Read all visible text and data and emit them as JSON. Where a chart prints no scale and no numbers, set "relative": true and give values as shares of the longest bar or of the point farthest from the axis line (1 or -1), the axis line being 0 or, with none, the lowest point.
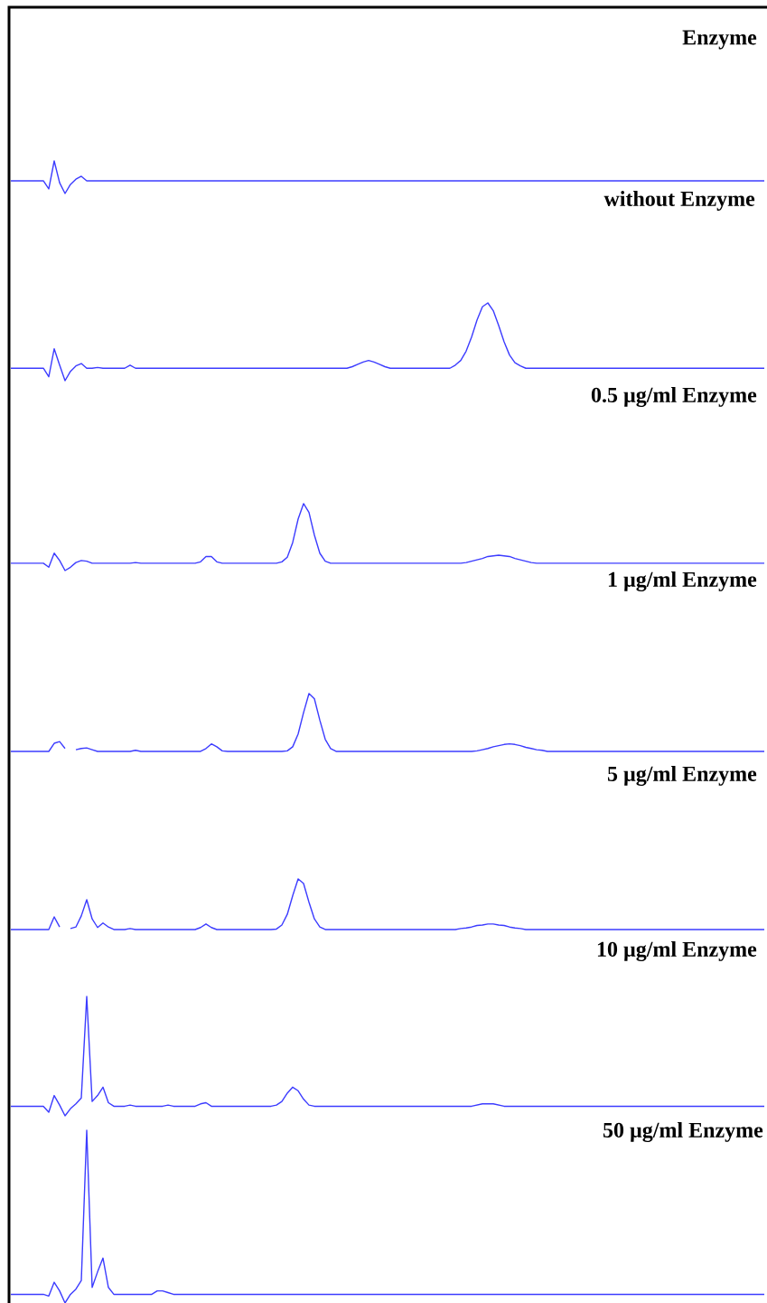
{
  "chart_data": [
    {
      "type": "line",
      "relative": true,
      "title": "Enzyme",
      "color": "#3c3cff",
      "categories": [
        null,
        null,
        null,
        null,
        null,
        null,
        null,
        null,
        null,
        null,
        null,
        null,
        null,
        null,
        null,
        null,
        null,
        null,
        null,
        null,
        null,
        null,
        null,
        null,
        null,
        null,
        null,
        null,
        null,
        null,
        null,
        null,
        null,
        null,
        null,
        null,
        null,
        null,
        null,
        null,
        null,
        null,
        null,
        null,
        null,
        null,
        null,
        null,
        null,
        null,
        null,
        null,
        null,
        null,
        null,
        null,
        null,
        null,
        null,
        null,
        null,
        null,
        null,
        null,
        null,
        null,
        null,
        null,
        null,
        null,
        null,
        null,
        null,
        null,
        null,
        null,
        null,
        null,
        null,
        null,
        null,
        null,
        null,
        null,
        null,
        null,
        null,
        null,
        null,
        null,
        null,
        null,
        null,
        null,
        null,
        null,
        null,
        null,
        null,
        null,
        null,
        null,
        null,
        null,
        null,
        null,
        null,
        null,
        null,
        null,
        null,
        null,
        null,
        null,
        null,
        null,
        null,
        null,
        null,
        null,
        null,
        null,
        null,
        null,
        null,
        null,
        null,
        null,
        null,
        null,
        null,
        null,
        null,
        null,
        null,
        null,
        null,
        null,
        null,
        null
      ],
      "values": [
        0.39,
        0.39,
        0.39,
        0.39,
        0.39,
        0.39,
        0.39,
        0.14,
        1,
        0.33,
        0,
        0.28,
        0.44,
        0.53,
        0.39,
        0.39,
        0.39,
        0.39,
        0.39,
        0.39,
        0.39,
        0.39,
        0.39,
        0.39,
        0.39,
        0.39,
        0.39,
        0.39,
        0.39,
        0.39,
        0.39,
        0.39,
        0.39,
        0.39,
        0.39,
        0.39,
        0.39,
        0.39,
        0.39,
        0.39,
        0.39,
        0.39,
        0.39,
        0.39,
        0.39,
        0.39,
        0.39,
        0.39,
        0.39,
        0.39,
        0.39,
        0.39,
        0.39,
        0.39,
        0.39,
        0.39,
        0.39,
        0.39,
        0.39,
        0.39,
        0.39,
        0.39,
        0.39,
        0.39,
        0.39,
        0.39,
        0.39,
        0.39,
        0.39,
        0.39,
        0.39,
        0.39,
        0.39,
        0.39,
        0.39,
        0.39,
        0.39,
        0.39,
        0.39,
        0.39,
        0.39,
        0.39,
        0.39,
        0.39,
        0.39,
        0.39,
        0.39,
        0.39,
        0.39,
        0.39,
        0.39,
        0.39,
        0.39,
        0.39,
        0.39,
        0.39,
        0.39,
        0.39,
        0.39,
        0.39,
        0.39,
        0.39,
        0.39,
        0.39,
        0.39,
        0.39,
        0.39,
        0.39,
        0.39,
        0.39,
        0.39,
        0.39,
        0.39,
        0.39,
        0.39,
        0.39,
        0.39,
        0.39,
        0.39,
        0.39,
        0.39,
        0.39,
        0.39,
        0.39,
        0.39,
        0.39,
        0.39,
        0.39,
        0.39,
        0.39,
        0.39,
        0.39,
        0.39,
        0.39,
        0.39,
        0.39,
        0.39,
        0.39,
        0.39,
        0.39
      ]
    },
    {
      "type": "line",
      "relative": true,
      "title": "without Enzyme",
      "color": "#3c3cff",
      "categories": [
        null,
        null,
        null,
        null,
        null,
        null,
        null,
        null,
        null,
        null,
        null,
        null,
        null,
        null,
        null,
        null,
        null,
        null,
        null,
        null,
        null,
        null,
        null,
        null,
        null,
        null,
        null,
        null,
        null,
        null,
        null,
        null,
        null,
        null,
        null,
        null,
        null,
        null,
        null,
        null,
        null,
        null,
        null,
        null,
        null,
        null,
        null,
        null,
        null,
        null,
        null,
        null,
        null,
        null,
        null,
        null,
        null,
        null,
        null,
        null,
        null,
        null,
        null,
        null,
        null,
        null,
        null,
        null,
        null,
        null,
        null,
        null,
        null,
        null,
        null,
        null,
        null,
        null,
        null,
        null,
        null,
        null,
        null,
        null,
        null,
        null,
        null,
        null,
        null,
        null,
        null,
        null,
        null,
        null,
        null,
        null,
        null,
        null,
        null,
        null,
        null,
        null,
        null,
        null,
        null,
        null,
        null,
        null,
        null,
        null,
        null,
        null,
        null,
        null,
        null,
        null,
        null,
        null,
        null,
        null,
        null,
        null,
        null,
        null,
        null,
        null,
        null,
        null,
        null,
        null,
        null,
        null,
        null,
        null,
        null,
        null,
        null,
        null,
        null,
        null
      ],
      "values": [
        0.16,
        0.16,
        0.16,
        0.16,
        0.16,
        0.16,
        0.16,
        0.05,
        0.41,
        0.2,
        0,
        0.12,
        0.19,
        0.22,
        0.16,
        0.16,
        0.17,
        0.16,
        0.16,
        0.16,
        0.16,
        0.16,
        0.2,
        0.16,
        0.16,
        0.16,
        0.16,
        0.16,
        0.16,
        0.16,
        0.16,
        0.16,
        0.16,
        0.16,
        0.16,
        0.16,
        0.16,
        0.16,
        0.16,
        0.16,
        0.16,
        0.16,
        0.16,
        0.16,
        0.16,
        0.16,
        0.16,
        0.16,
        0.16,
        0.16,
        0.16,
        0.16,
        0.16,
        0.16,
        0.16,
        0.16,
        0.16,
        0.16,
        0.16,
        0.16,
        0.16,
        0.16,
        0.16,
        0.18,
        0.21,
        0.24,
        0.26,
        0.24,
        0.21,
        0.18,
        0.16,
        0.16,
        0.16,
        0.16,
        0.16,
        0.16,
        0.16,
        0.16,
        0.16,
        0.16,
        0.16,
        0.16,
        0.2,
        0.26,
        0.38,
        0.56,
        0.78,
        0.95,
        1,
        0.9,
        0.71,
        0.5,
        0.33,
        0.23,
        0.19,
        0.16,
        0.16,
        0.16,
        0.16,
        0.16,
        0.16,
        0.16,
        0.16,
        0.16,
        0.16,
        0.16,
        0.16,
        0.16,
        0.16,
        0.16,
        0.16,
        0.16,
        0.16,
        0.16,
        0.16,
        0.16,
        0.16,
        0.16,
        0.16,
        0.16,
        0.16,
        0.16,
        0.16,
        0.16,
        0.16,
        0.16,
        0.16,
        0.16,
        0.16,
        0.16,
        0.16,
        0.16,
        0.16,
        0.16,
        0.16,
        0.16,
        0.16,
        0.16,
        0.16,
        0.16
      ]
    },
    {
      "type": "line",
      "relative": true,
      "title": "0.5 µg/ml Enzyme",
      "color": "#3c3cff",
      "categories": [
        null,
        null,
        null,
        null,
        null,
        null,
        null,
        null,
        null,
        null,
        null,
        null,
        null,
        null,
        null,
        null,
        null,
        null,
        null,
        null,
        null,
        null,
        null,
        null,
        null,
        null,
        null,
        null,
        null,
        null,
        null,
        null,
        null,
        null,
        null,
        null,
        null,
        null,
        null,
        null,
        null,
        null,
        null,
        null,
        null,
        null,
        null,
        null,
        null,
        null,
        null,
        null,
        null,
        null,
        null,
        null,
        null,
        null,
        null,
        null,
        null,
        null,
        null,
        null,
        null,
        null,
        null,
        null,
        null,
        null,
        null,
        null,
        null,
        null,
        null,
        null,
        null,
        null,
        null,
        null,
        null,
        null,
        null,
        null,
        null,
        null,
        null,
        null,
        null,
        null,
        null,
        null,
        null,
        null,
        null,
        null,
        null,
        null,
        null,
        null,
        null,
        null,
        null,
        null,
        null,
        null,
        null,
        null,
        null,
        null,
        null,
        null,
        null,
        null,
        null,
        null,
        null,
        null,
        null,
        null,
        null,
        null,
        null,
        null,
        null,
        null,
        null,
        null,
        null,
        null,
        null,
        null,
        null,
        null,
        null,
        null,
        null,
        null,
        null,
        null
      ],
      "values": [
        0.11,
        0.11,
        0.11,
        0.11,
        0.11,
        0.11,
        0.11,
        0.05,
        0.26,
        0.15,
        0,
        0.05,
        0.12,
        0.15,
        0.14,
        0.11,
        0.11,
        0.11,
        0.11,
        0.11,
        0.11,
        0.11,
        0.11,
        0.12,
        0.11,
        0.11,
        0.11,
        0.11,
        0.11,
        0.11,
        0.11,
        0.11,
        0.11,
        0.11,
        0.11,
        0.13,
        0.21,
        0.21,
        0.13,
        0.11,
        0.11,
        0.11,
        0.11,
        0.11,
        0.11,
        0.11,
        0.11,
        0.11,
        0.11,
        0.11,
        0.13,
        0.2,
        0.42,
        0.77,
        1,
        0.87,
        0.53,
        0.26,
        0.14,
        0.11,
        0.11,
        0.11,
        0.11,
        0.11,
        0.11,
        0.11,
        0.11,
        0.11,
        0.11,
        0.11,
        0.11,
        0.11,
        0.11,
        0.11,
        0.11,
        0.11,
        0.11,
        0.11,
        0.11,
        0.11,
        0.11,
        0.11,
        0.11,
        0.11,
        0.12,
        0.14,
        0.16,
        0.18,
        0.21,
        0.22,
        0.23,
        0.22,
        0.21,
        0.18,
        0.16,
        0.14,
        0.12,
        0.11,
        0.11,
        0.11,
        0.11,
        0.11,
        0.11,
        0.11,
        0.11,
        0.11,
        0.11,
        0.11,
        0.11,
        0.11,
        0.11,
        0.11,
        0.11,
        0.11,
        0.11,
        0.11,
        0.11,
        0.11,
        0.11,
        0.11,
        0.11,
        0.11,
        0.11,
        0.11,
        0.11,
        0.11,
        0.11,
        0.11,
        0.11,
        0.11,
        0.11,
        0.11,
        0.11,
        0.11,
        0.11,
        0.11,
        0.11,
        0.11,
        0.11,
        0.11
      ]
    },
    {
      "type": "line",
      "relative": true,
      "title": "1 µg/ml Enzyme",
      "color": "#3c3cff",
      "categories": [
        null,
        null,
        null,
        null,
        null,
        null,
        null,
        null,
        null,
        null,
        null,
        null,
        null,
        null,
        null,
        null,
        null,
        null,
        null,
        null,
        null,
        null,
        null,
        null,
        null,
        null,
        null,
        null,
        null,
        null,
        null,
        null,
        null,
        null,
        null,
        null,
        null,
        null,
        null,
        null,
        null,
        null,
        null,
        null,
        null,
        null,
        null,
        null,
        null,
        null,
        null,
        null,
        null,
        null,
        null,
        null,
        null,
        null,
        null,
        null,
        null,
        null,
        null,
        null,
        null,
        null,
        null,
        null,
        null,
        null,
        null,
        null,
        null,
        null,
        null,
        null,
        null,
        null,
        null,
        null,
        null,
        null,
        null,
        null,
        null,
        null,
        null,
        null,
        null,
        null,
        null,
        null,
        null,
        null,
        null,
        null,
        null,
        null,
        null,
        null,
        null,
        null,
        null,
        null,
        null,
        null,
        null,
        null,
        null,
        null,
        null,
        null,
        null,
        null,
        null,
        null,
        null,
        null,
        null,
        null,
        null,
        null,
        null,
        null,
        null,
        null,
        null,
        null,
        null,
        null,
        null,
        null,
        null,
        null,
        null,
        null,
        null,
        null,
        null,
        null
      ],
      "values": [
        0,
        0,
        0,
        0,
        0,
        0,
        0,
        0,
        0.14,
        0.17,
        0.05,
        null,
        0.03,
        0.05,
        0.06,
        0.03,
        0,
        0,
        0,
        0,
        0,
        0,
        0,
        0.02,
        0,
        0,
        0,
        0,
        0,
        0,
        0,
        0,
        0,
        0,
        0,
        0,
        0.05,
        0.13,
        0.08,
        0.01,
        0,
        0,
        0,
        0,
        0,
        0,
        0,
        0,
        0,
        0,
        0,
        0.01,
        0.08,
        0.3,
        0.67,
        1,
        0.91,
        0.54,
        0.21,
        0.05,
        0,
        0,
        0,
        0,
        0,
        0,
        0,
        0,
        0,
        0,
        0,
        0,
        0,
        0,
        0,
        0,
        0,
        0,
        0,
        0,
        0,
        0,
        0,
        0,
        0,
        0,
        0.01,
        0.03,
        0.05,
        0.08,
        0.1,
        0.12,
        0.13,
        0.12,
        0.1,
        0.07,
        0.05,
        0.03,
        0.02,
        0,
        0,
        0,
        0,
        0,
        0,
        0,
        0,
        0,
        0,
        0,
        0,
        0,
        0,
        0,
        0,
        0,
        0,
        0,
        0,
        0,
        0,
        0,
        0,
        0,
        0,
        0,
        0,
        0,
        0,
        0,
        0,
        0,
        0,
        0,
        0,
        0,
        0,
        0,
        0,
        0
      ]
    },
    {
      "type": "line",
      "relative": true,
      "title": "5 µg/ml Enzyme",
      "color": "#3c3cff",
      "categories": [
        null,
        null,
        null,
        null,
        null,
        null,
        null,
        null,
        null,
        null,
        null,
        null,
        null,
        null,
        null,
        null,
        null,
        null,
        null,
        null,
        null,
        null,
        null,
        null,
        null,
        null,
        null,
        null,
        null,
        null,
        null,
        null,
        null,
        null,
        null,
        null,
        null,
        null,
        null,
        null,
        null,
        null,
        null,
        null,
        null,
        null,
        null,
        null,
        null,
        null,
        null,
        null,
        null,
        null,
        null,
        null,
        null,
        null,
        null,
        null,
        null,
        null,
        null,
        null,
        null,
        null,
        null,
        null,
        null,
        null,
        null,
        null,
        null,
        null,
        null,
        null,
        null,
        null,
        null,
        null,
        null,
        null,
        null,
        null,
        null,
        null,
        null,
        null,
        null,
        null,
        null,
        null,
        null,
        null,
        null,
        null,
        null,
        null,
        null,
        null,
        null,
        null,
        null,
        null,
        null,
        null,
        null,
        null,
        null,
        null,
        null,
        null,
        null,
        null,
        null,
        null,
        null,
        null,
        null,
        null,
        null,
        null,
        null,
        null,
        null,
        null,
        null,
        null,
        null,
        null,
        null,
        null,
        null,
        null,
        null,
        null,
        null,
        null,
        null,
        null
      ],
      "values": [
        0,
        0,
        0,
        0,
        0,
        0,
        0,
        0,
        0.25,
        0.05,
        null,
        0.02,
        0.05,
        0.27,
        0.59,
        0.21,
        0.04,
        0.13,
        0.05,
        0,
        0,
        0,
        0.02,
        0,
        0,
        0,
        0,
        0,
        0,
        0,
        0,
        0,
        0,
        0,
        0,
        0.04,
        0.11,
        0.04,
        0,
        0,
        0,
        0,
        0,
        0,
        0,
        0,
        0,
        0,
        0,
        0.01,
        0.09,
        0.3,
        0.67,
        1,
        0.91,
        0.54,
        0.21,
        0.05,
        0,
        0,
        0,
        0,
        0,
        0,
        0,
        0,
        0,
        0,
        0,
        0,
        0,
        0,
        0,
        0,
        0,
        0,
        0,
        0,
        0,
        0,
        0,
        0,
        0,
        0.02,
        0.03,
        0.05,
        0.08,
        0.09,
        0.11,
        0.11,
        0.09,
        0.08,
        0.05,
        0.03,
        0.02,
        0,
        0,
        0,
        0,
        0,
        0,
        0,
        0,
        0,
        0,
        0,
        0,
        0,
        0,
        0,
        0,
        0,
        0,
        0,
        0,
        0,
        0,
        0,
        0,
        0,
        0,
        0,
        0,
        0,
        0,
        0,
        0,
        0,
        0,
        0,
        0,
        0,
        0,
        0,
        0,
        0,
        0,
        0,
        0,
        0
      ]
    },
    {
      "type": "line",
      "relative": true,
      "title": "10 µg/ml Enzyme",
      "color": "#3c3cff",
      "categories": [
        null,
        null,
        null,
        null,
        null,
        null,
        null,
        null,
        null,
        null,
        null,
        null,
        null,
        null,
        null,
        null,
        null,
        null,
        null,
        null,
        null,
        null,
        null,
        null,
        null,
        null,
        null,
        null,
        null,
        null,
        null,
        null,
        null,
        null,
        null,
        null,
        null,
        null,
        null,
        null,
        null,
        null,
        null,
        null,
        null,
        null,
        null,
        null,
        null,
        null,
        null,
        null,
        null,
        null,
        null,
        null,
        null,
        null,
        null,
        null,
        null,
        null,
        null,
        null,
        null,
        null,
        null,
        null,
        null,
        null,
        null,
        null,
        null,
        null,
        null,
        null,
        null,
        null,
        null,
        null,
        null,
        null,
        null,
        null,
        null,
        null,
        null,
        null,
        null,
        null,
        null,
        null,
        null,
        null,
        null,
        null,
        null,
        null,
        null,
        null,
        null,
        null,
        null,
        null,
        null,
        null,
        null,
        null,
        null,
        null,
        null,
        null,
        null,
        null,
        null,
        null,
        null,
        null,
        null,
        null,
        null,
        null,
        null,
        null,
        null,
        null,
        null,
        null,
        null,
        null,
        null,
        null,
        null,
        null,
        null,
        null,
        null,
        null,
        null,
        null
      ],
      "values": [
        0.08,
        0.08,
        0.08,
        0.08,
        0.08,
        0.08,
        0.08,
        0.03,
        0.17,
        0.09,
        0,
        0.06,
        0.1,
        0.15,
        1,
        0.12,
        0.17,
        0.24,
        0.11,
        0.08,
        0.08,
        0.08,
        0.09,
        0.08,
        0.08,
        0.08,
        0.08,
        0.08,
        0.08,
        0.09,
        0.08,
        0.08,
        0.08,
        0.08,
        0.08,
        0.1,
        0.11,
        0.08,
        0.08,
        0.08,
        0.08,
        0.08,
        0.08,
        0.08,
        0.08,
        0.08,
        0.08,
        0.08,
        0.08,
        0.09,
        0.12,
        0.19,
        0.24,
        0.21,
        0.14,
        0.09,
        0.08,
        0.08,
        0.08,
        0.08,
        0.08,
        0.08,
        0.08,
        0.08,
        0.08,
        0.08,
        0.08,
        0.08,
        0.08,
        0.08,
        0.08,
        0.08,
        0.08,
        0.08,
        0.08,
        0.08,
        0.08,
        0.08,
        0.08,
        0.08,
        0.08,
        0.08,
        0.08,
        0.08,
        0.08,
        0.08,
        0.09,
        0.1,
        0.1,
        0.1,
        0.09,
        0.08,
        0.08,
        0.08,
        0.08,
        0.08,
        0.08,
        0.08,
        0.08,
        0.08,
        0.08,
        0.08,
        0.08,
        0.08,
        0.08,
        0.08,
        0.08,
        0.08,
        0.08,
        0.08,
        0.08,
        0.08,
        0.08,
        0.08,
        0.08,
        0.08,
        0.08,
        0.08,
        0.08,
        0.08,
        0.08,
        0.08,
        0.08,
        0.08,
        0.08,
        0.08,
        0.08,
        0.08,
        0.08,
        0.08,
        0.08,
        0.08,
        0.08,
        0.08,
        0.08,
        0.08,
        0.08,
        0.08,
        0.08,
        0.08
      ]
    },
    {
      "type": "line",
      "relative": true,
      "title": "50 µg/ml Enzyme",
      "color": "#3c3cff",
      "categories": [
        null,
        null,
        null,
        null,
        null,
        null,
        null,
        null,
        null,
        null,
        null,
        null,
        null,
        null,
        null,
        null,
        null,
        null,
        null,
        null,
        null,
        null,
        null,
        null,
        null,
        null,
        null,
        null,
        null,
        null,
        null,
        null,
        null,
        null,
        null,
        null,
        null,
        null,
        null,
        null,
        null,
        null,
        null,
        null,
        null,
        null,
        null,
        null,
        null,
        null,
        null,
        null,
        null,
        null,
        null,
        null,
        null,
        null,
        null,
        null,
        null,
        null,
        null,
        null,
        null,
        null,
        null,
        null,
        null,
        null,
        null,
        null,
        null,
        null,
        null,
        null,
        null,
        null,
        null,
        null,
        null,
        null,
        null,
        null,
        null,
        null,
        null,
        null,
        null,
        null,
        null,
        null,
        null,
        null,
        null,
        null,
        null,
        null,
        null,
        null,
        null,
        null,
        null,
        null,
        null,
        null,
        null,
        null,
        null,
        null,
        null,
        null,
        null,
        null,
        null,
        null,
        null,
        null,
        null,
        null,
        null,
        null,
        null,
        null,
        null,
        null,
        null,
        null,
        null,
        null,
        null,
        null,
        null,
        null,
        null,
        null,
        null,
        null,
        null,
        null
      ],
      "values": [
        0.05,
        0.05,
        0.05,
        0.05,
        0.05,
        0.05,
        0.05,
        0.04,
        0.12,
        0.07,
        0,
        0.05,
        0.08,
        0.13,
        1,
        0.09,
        0.18,
        0.26,
        0.09,
        0.05,
        0.05,
        0.05,
        0.05,
        0.05,
        0.05,
        0.05,
        0.05,
        0.07,
        0.07,
        0.06,
        0.05,
        0.05,
        0.05,
        0.05,
        0.05,
        0.05,
        0.05,
        0.05,
        0.05,
        0.05,
        0.05,
        0.05,
        0.05,
        0.05,
        0.05,
        0.05,
        0.05,
        0.05,
        0.05,
        0.05,
        0.05,
        0.05,
        0.05,
        0.05,
        0.05,
        0.05,
        0.05,
        0.05,
        0.05,
        0.05,
        0.05,
        0.05,
        0.05,
        0.05,
        0.05,
        0.05,
        0.05,
        0.05,
        0.05,
        0.05,
        0.05,
        0.05,
        0.05,
        0.05,
        0.05,
        0.05,
        0.05,
        0.05,
        0.05,
        0.05,
        0.05,
        0.05,
        0.05,
        0.05,
        0.05,
        0.05,
        0.05,
        0.05,
        0.05,
        0.05,
        0.05,
        0.05,
        0.05,
        0.05,
        0.05,
        0.05,
        0.05,
        0.05,
        0.05,
        0.05,
        0.05,
        0.05,
        0.05,
        0.05,
        0.05,
        0.05,
        0.05,
        0.05,
        0.05,
        0.05,
        0.05,
        0.05,
        0.05,
        0.05,
        0.05,
        0.05,
        0.05,
        0.05,
        0.05,
        0.05,
        0.05,
        0.05,
        0.05,
        0.05,
        0.05,
        0.05,
        0.05,
        0.05,
        0.05,
        0.05,
        0.05,
        0.05,
        0.05,
        0.05,
        0.05,
        0.05,
        0.05,
        0.05,
        0.05,
        0.05
      ]
    }
  ]
}
